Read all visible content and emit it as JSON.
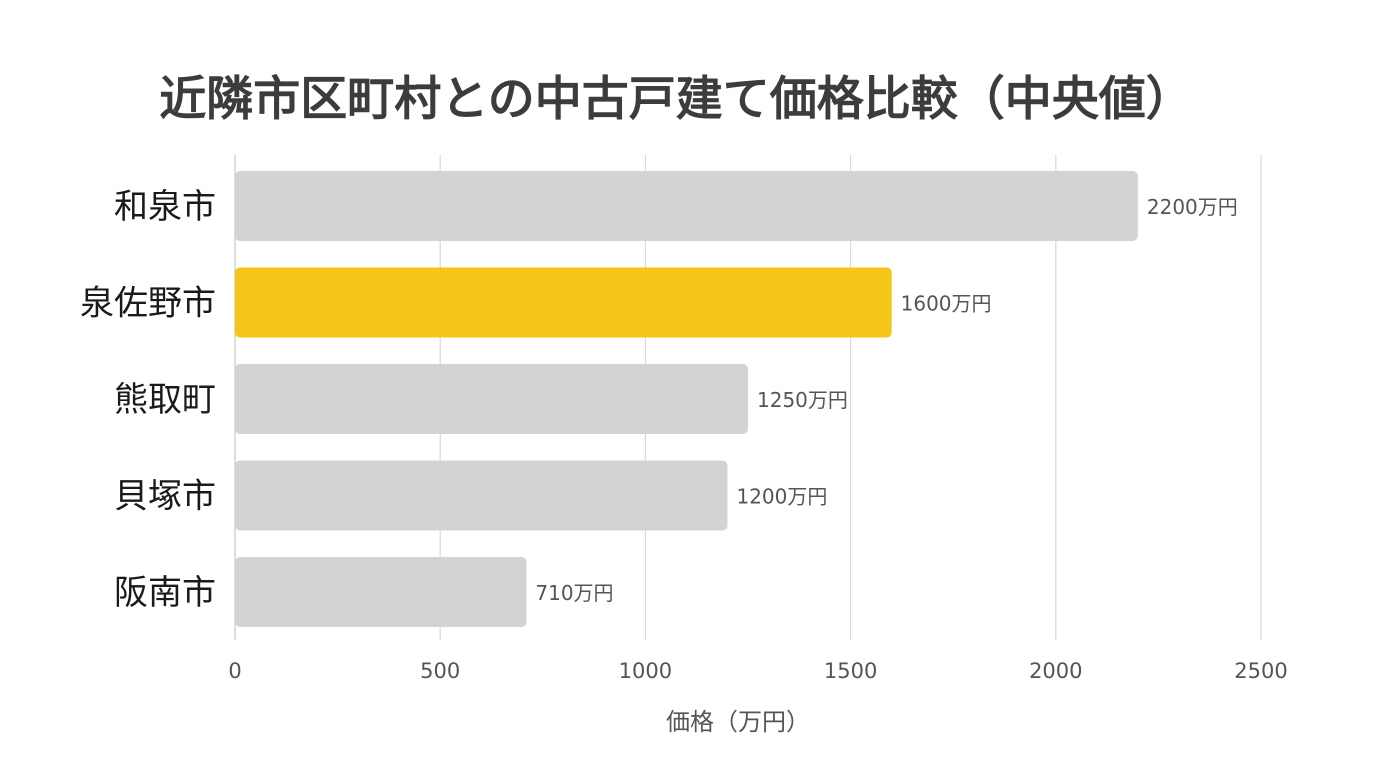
{
  "chart_data": {
    "type": "bar",
    "orientation": "horizontal",
    "title": "近隣市区町村との中古戸建て価格比較（中央値）",
    "xlabel": "価格（万円）",
    "ylabel": "",
    "categories": [
      "和泉市",
      "泉佐野市",
      "熊取町",
      "貝塚市",
      "阪南市"
    ],
    "values": [
      2200,
      1600,
      1250,
      1200,
      710
    ],
    "value_labels": [
      "2200万円",
      "1600万円",
      "1250万円",
      "1200万円",
      "710万円"
    ],
    "highlight_index": 1,
    "xlim": [
      0,
      2500
    ],
    "xticks": [
      0,
      500,
      1000,
      1500,
      2000,
      2500
    ],
    "grid": "vertical",
    "colors": {
      "default_bar": "#d3d3d3",
      "highlight_bar": "#f5c518",
      "grid": "#d9d9d9",
      "title": "#3c3c3c"
    }
  }
}
